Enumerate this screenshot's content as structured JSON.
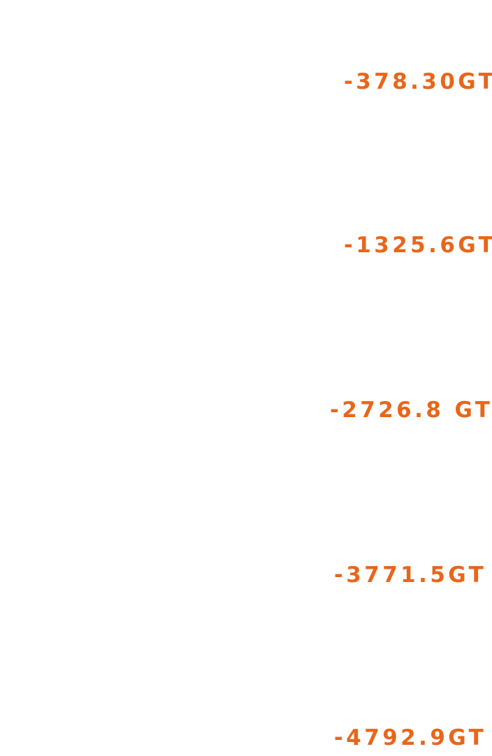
{
  "accent_color": "#E8661A",
  "values": [
    "-378.30GT",
    "-1325.6GT",
    "-2726.8 GT",
    "-3771.5GT",
    "-4792.9GT"
  ]
}
